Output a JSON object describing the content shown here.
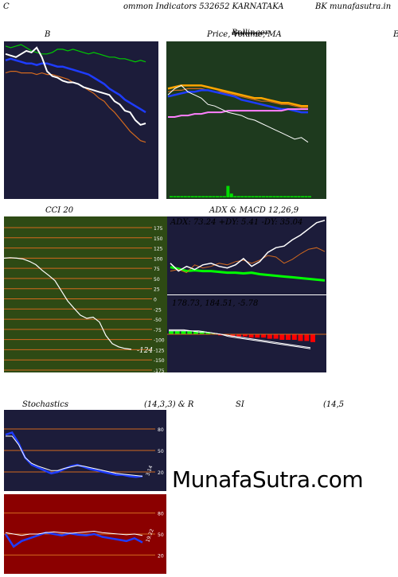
{
  "header": {
    "left": "C",
    "title": "ommon  Indicators 532652  KARNATAKA",
    "right": "BK munafasutra.in"
  },
  "panel_titles": {
    "bollinger": "B",
    "price": "Price,  Volume,  MA",
    "price_overlay": "Bollinger",
    "edge": "E",
    "cci": "CCI 20",
    "adx_macd": "ADX  & MACD 12,26,9",
    "stoch_left": "Stochastics",
    "stoch_mid": "(14,3,3) & R",
    "rsi": "SI",
    "rsi_right": "(14,5"
  },
  "watermark": "MunafaSutra.com",
  "colors": {
    "navy": "#1c1c3a",
    "green_bg": "#1e3a1e",
    "olive_bg": "#2e4a14",
    "red_bg": "#8b0000",
    "orange": "#d2691e",
    "white": "#ffffff",
    "blue": "#1e3cff",
    "bright_green": "#00ff00",
    "pink": "#ff80ff",
    "red": "#ff0000"
  },
  "chart_data": [
    {
      "id": "bollinger",
      "type": "line",
      "title": "B",
      "series": [
        {
          "color": "#00cc00",
          "values": [
            97,
            96,
            97,
            98,
            96,
            94,
            93,
            92,
            92,
            93,
            95,
            95,
            94,
            95,
            94,
            93,
            92,
            93,
            92,
            91,
            90,
            90,
            89,
            89,
            88,
            87,
            88,
            87
          ]
        },
        {
          "color": "#1e3cff",
          "values": [
            88,
            89,
            88,
            87,
            86,
            86,
            85,
            86,
            86,
            85,
            84,
            84,
            83,
            82,
            81,
            80,
            79,
            77,
            75,
            73,
            70,
            68,
            66,
            63,
            61,
            59,
            57,
            55
          ]
        },
        {
          "color": "#d2691e",
          "values": [
            80,
            81,
            81,
            80,
            80,
            80,
            79,
            80,
            79,
            79,
            78,
            77,
            76,
            74,
            73,
            71,
            69,
            67,
            64,
            62,
            58,
            55,
            51,
            47,
            43,
            40,
            37,
            36
          ]
        },
        {
          "color": "#ffffff",
          "values": [
            92,
            91,
            90,
            92,
            94,
            93,
            96,
            90,
            81,
            78,
            77,
            75,
            74,
            74,
            73,
            71,
            70,
            69,
            68,
            67,
            66,
            62,
            60,
            56,
            55,
            50,
            47,
            48
          ]
        }
      ]
    },
    {
      "id": "price",
      "type": "line",
      "title": "Price,  Volume,  MA",
      "series": [
        {
          "color": "#ffa500",
          "values": [
            70,
            71,
            72,
            72,
            72,
            72,
            71,
            70,
            69,
            68,
            67,
            66,
            65,
            64,
            64,
            63,
            62,
            61,
            61,
            60,
            59,
            59
          ]
        },
        {
          "color": "#d2691e",
          "values": [
            68,
            69,
            69,
            70,
            70,
            70,
            69,
            68,
            68,
            67,
            66,
            65,
            64,
            63,
            62,
            62,
            61,
            60,
            60,
            59,
            58,
            58
          ]
        },
        {
          "color": "#1e3cff",
          "values": [
            65,
            66,
            67,
            68,
            68,
            69,
            69,
            68,
            67,
            66,
            65,
            63,
            62,
            61,
            60,
            59,
            58,
            57,
            57,
            56,
            55,
            55
          ]
        },
        {
          "color": "#ff80ff",
          "values": [
            52,
            52,
            53,
            53,
            54,
            54,
            55,
            55,
            55,
            56,
            56,
            56,
            56,
            56,
            56,
            56,
            56,
            56,
            57,
            57,
            57,
            57
          ]
        },
        {
          "color": "#ffffff",
          "values": [
            66,
            70,
            72,
            68,
            66,
            64,
            60,
            59,
            57,
            55,
            54,
            53,
            51,
            50,
            48,
            46,
            44,
            42,
            40,
            38,
            39,
            36
          ]
        }
      ],
      "volume": [
        1,
        1,
        1,
        1,
        1,
        1,
        1,
        1,
        1,
        1,
        1,
        1,
        1,
        1,
        1,
        1,
        9,
        3,
        1,
        1,
        1,
        1,
        1,
        1,
        1,
        1,
        1,
        1,
        1,
        1,
        1,
        1,
        1,
        1,
        1,
        1,
        1,
        1,
        1,
        1
      ]
    },
    {
      "id": "cci",
      "type": "line",
      "title": "CCI 20",
      "ylim": [
        -175,
        175
      ],
      "y_ticks": [
        175,
        150,
        125,
        100,
        75,
        50,
        25,
        0,
        -25,
        -50,
        -75,
        -100,
        -125,
        -150,
        -175
      ],
      "values": [
        100,
        101,
        100,
        98,
        92,
        84,
        70,
        58,
        45,
        20,
        -5,
        -23,
        -40,
        -48,
        -45,
        -57,
        -90,
        -110,
        -118,
        -122,
        -124
      ],
      "last_label": "-124"
    },
    {
      "id": "adx",
      "type": "line",
      "title": "ADX: 73.24  +DY: 5.41 -DY: 35.04",
      "series": [
        {
          "name": "ADX",
          "color": "#00ff00",
          "values": [
            35,
            33,
            30,
            31,
            30,
            30,
            29,
            28,
            28,
            27,
            28,
            26,
            25,
            24,
            23,
            22,
            21,
            20,
            19,
            18
          ]
        },
        {
          "name": "+DY",
          "color": "#d2691e",
          "values": [
            30,
            32,
            28,
            38,
            34,
            36,
            40,
            38,
            42,
            44,
            40,
            44,
            50,
            48,
            40,
            45,
            52,
            58,
            60,
            55
          ]
        },
        {
          "name": "-DY",
          "color": "#ffffff",
          "values": [
            40,
            30,
            36,
            32,
            38,
            40,
            36,
            34,
            38,
            46,
            36,
            42,
            54,
            60,
            62,
            70,
            76,
            84,
            92,
            95
          ]
        }
      ]
    },
    {
      "id": "macd",
      "type": "bar",
      "title": "178.73,   184.51,   -5.78",
      "histogram": [
        3,
        3,
        3,
        3,
        3,
        3,
        2,
        1,
        -1,
        -1,
        -2,
        -2,
        -2,
        -3,
        -3,
        -3,
        -4,
        -4,
        -5,
        -5,
        -5,
        -6,
        -6,
        -7
      ],
      "series": [
        {
          "name": "MACD",
          "color": "#ffffff",
          "values": [
            4,
            4,
            4,
            3,
            3,
            2,
            1,
            0,
            -2,
            -3,
            -4,
            -5,
            -6,
            -7,
            -8,
            -9,
            -10,
            -11,
            -12,
            -13
          ]
        },
        {
          "name": "Signal",
          "color": "#ffffff",
          "values": [
            3,
            3,
            3,
            3,
            2,
            2,
            1,
            0,
            -1,
            -2,
            -3,
            -4,
            -5,
            -6,
            -7,
            -8,
            -9,
            -10,
            -11,
            -12
          ]
        }
      ]
    },
    {
      "id": "stochastics",
      "type": "line",
      "title": "Stochastics",
      "ylim": [
        0,
        100
      ],
      "y_ticks": [
        80,
        50,
        20
      ],
      "series": [
        {
          "color": "#1e3cff",
          "values": [
            72,
            75,
            60,
            40,
            30,
            26,
            22,
            18,
            20,
            24,
            28,
            30,
            27,
            24,
            22,
            20,
            18,
            16,
            16,
            14,
            13,
            14
          ]
        },
        {
          "color": "#ffffff",
          "values": [
            70,
            70,
            58,
            40,
            32,
            28,
            25,
            22,
            22,
            25,
            27,
            29,
            28,
            26,
            24,
            22,
            20,
            18,
            17,
            16,
            15,
            14
          ]
        }
      ],
      "last_label": "3.14"
    },
    {
      "id": "rsi",
      "type": "line",
      "title": "SI",
      "ylim": [
        0,
        100
      ],
      "y_ticks": [
        80,
        50,
        20
      ],
      "series": [
        {
          "color": "#1e3cff",
          "values": [
            50,
            32,
            40,
            44,
            48,
            52,
            50,
            48,
            51,
            49,
            48,
            50,
            46,
            44,
            42,
            40,
            44,
            38
          ]
        },
        {
          "color": "#ffffff",
          "values": [
            52,
            50,
            48,
            50,
            50,
            52,
            53,
            52,
            51,
            52,
            53,
            54,
            52,
            51,
            50,
            49,
            50,
            48
          ]
        }
      ],
      "last_label": "19.22"
    }
  ]
}
